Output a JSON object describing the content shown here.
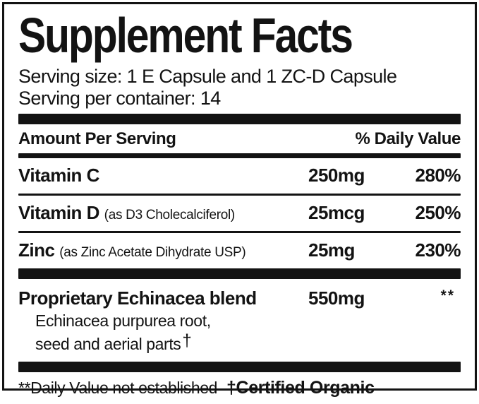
{
  "label": {
    "title": "Supplement Facts",
    "serving_size": "Serving size: 1 E Capsule and 1 ZC-D Capsule",
    "servings_per_container": "Serving per container: 14",
    "columns": {
      "left": "Amount Per Serving",
      "right": "% Daily Value"
    },
    "nutrients": [
      {
        "name": "Vitamin C",
        "detail": "",
        "amount": "250mg",
        "daily_value": "280%"
      },
      {
        "name": "Vitamin D",
        "detail": "(as D3 Cholecalciferol)",
        "amount": "25mcg",
        "daily_value": "250%"
      },
      {
        "name": "Zinc",
        "detail": "(as Zinc Acetate Dihydrate USP)",
        "amount": "25mg",
        "daily_value": "230%"
      }
    ],
    "blend": {
      "name": "Proprietary Echinacea blend",
      "amount": "550mg",
      "daily_value": "**",
      "description_line1": "Echinacea purpurea root,",
      "description_line2": "seed and aerial parts",
      "description_dagger": "†"
    },
    "footnotes": {
      "daily_value": "**Daily Value not established",
      "certified": "†Certified Organic"
    },
    "colors": {
      "ink": "#131313",
      "background": "#ffffff"
    }
  }
}
